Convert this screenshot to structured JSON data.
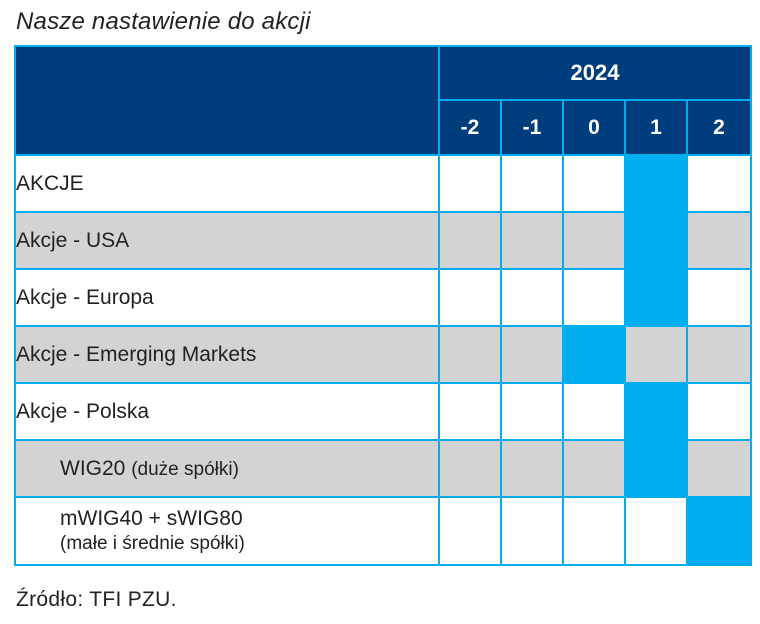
{
  "title": "Nasze nastawienie do akcji",
  "year": "2024",
  "levels": [
    "-2",
    "-1",
    "0",
    "1",
    "2"
  ],
  "rows": [
    {
      "label": "AKCJE",
      "selected": "1"
    },
    {
      "label": "Akcje - USA",
      "selected": "1"
    },
    {
      "label": "Akcje - Europa",
      "selected": "1"
    },
    {
      "label": "Akcje - Emerging Markets",
      "selected": "0"
    },
    {
      "label": "Akcje - Polska",
      "selected": "1"
    },
    {
      "label": "WIG20",
      "sublabel": "(duże spółki)",
      "selected": "1"
    },
    {
      "label": "mWIG40 + sWIG80",
      "sublabel": "(małe i średnie spółki)",
      "selected": "2"
    }
  ],
  "source": "Źródło: TFI PZU.",
  "colors": {
    "header": "#003d7c",
    "highlight": "#00aeef",
    "shade": "#d3d3d3"
  }
}
